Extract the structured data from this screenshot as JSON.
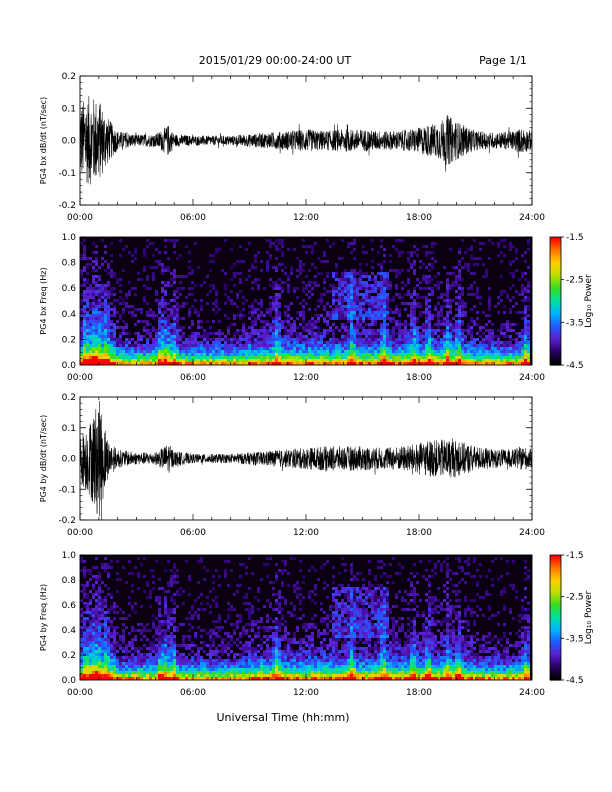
{
  "header": {
    "date_range": "2015/01/29  00:00-24:00 UT",
    "page": "Page 1/1"
  },
  "footer": {
    "xlabel": "Universal Time (hh:mm)"
  },
  "colors": {
    "trace": "#000000",
    "spectrogram_background": "#0a0012",
    "colormap": [
      "#000000",
      "#2a0066",
      "#5a1fd0",
      "#1f5bff",
      "#00b4ff",
      "#00e0a0",
      "#33dd22",
      "#b8e000",
      "#ffd000",
      "#ff7a00",
      "#ff0000"
    ]
  },
  "chart_data": [
    {
      "type": "line",
      "id": "bx_dbdt",
      "ylabel": "PG4 bx dB/dt (nT/sec)",
      "xlim": [
        0,
        24
      ],
      "ylim": [
        -0.2,
        0.2
      ],
      "yticks": [
        "0.2",
        "0.1",
        "0.0",
        "-0.1",
        "-0.2"
      ],
      "ytick_values": [
        0.2,
        0.1,
        0.0,
        -0.1,
        -0.2
      ],
      "xticks": [
        "00:00",
        "06:00",
        "12:00",
        "18:00",
        "24:00"
      ],
      "envelope_hours": [
        0,
        0.5,
        1,
        1.5,
        2,
        3,
        4,
        4.4,
        4.7,
        5,
        6,
        7,
        8,
        9,
        10,
        11,
        12,
        13,
        14,
        15,
        16,
        17,
        18,
        18.5,
        19,
        19.5,
        20,
        21,
        22,
        23,
        23.5,
        24
      ],
      "envelope_amp": [
        0.12,
        0.14,
        0.13,
        0.07,
        0.03,
        0.018,
        0.02,
        0.035,
        0.05,
        0.02,
        0.015,
        0.015,
        0.015,
        0.02,
        0.025,
        0.03,
        0.035,
        0.03,
        0.035,
        0.035,
        0.03,
        0.03,
        0.04,
        0.05,
        0.055,
        0.08,
        0.06,
        0.03,
        0.025,
        0.03,
        0.04,
        0.03
      ]
    },
    {
      "type": "heatmap",
      "id": "bx_freq",
      "ylabel": "PG4 bx Freq (Hz)",
      "xlim": [
        0,
        24
      ],
      "ylim": [
        0.0,
        1.0
      ],
      "yticks": [
        "1.0",
        "0.8",
        "0.6",
        "0.4",
        "0.2",
        "0.0"
      ],
      "ytick_values": [
        1.0,
        0.8,
        0.6,
        0.4,
        0.2,
        0.0
      ],
      "xticks": [
        "00:00",
        "06:00",
        "12:00",
        "18:00",
        "24:00"
      ],
      "colorbar": {
        "label": "Log₁₀ Power",
        "range": [
          -4.5,
          -1.5
        ],
        "ticks": [
          "-1.5",
          "-2.5",
          "-3.5",
          "-4.5"
        ],
        "tick_values": [
          -1.5,
          -2.5,
          -3.5,
          -4.5
        ]
      }
    },
    {
      "type": "line",
      "id": "by_dbdt",
      "ylabel": "PG4 by dB/dt (nT/sec)",
      "xlim": [
        0,
        24
      ],
      "ylim": [
        -0.2,
        0.2
      ],
      "yticks": [
        "0.2",
        "0.1",
        "0.0",
        "-0.1",
        "-0.2"
      ],
      "ytick_values": [
        0.2,
        0.1,
        0.0,
        -0.1,
        -0.2
      ],
      "xticks": [
        "00:00",
        "06:00",
        "12:00",
        "18:00",
        "24:00"
      ],
      "envelope_hours": [
        0,
        0.5,
        1,
        1.5,
        2,
        3,
        4,
        4.4,
        4.7,
        5,
        6,
        7,
        8,
        9,
        10,
        11,
        12,
        13,
        14,
        15,
        16,
        17,
        18,
        18.5,
        19,
        19.5,
        20,
        21,
        22,
        23,
        23.5,
        24
      ],
      "envelope_amp": [
        0.08,
        0.12,
        0.2,
        0.06,
        0.03,
        0.02,
        0.02,
        0.035,
        0.05,
        0.025,
        0.015,
        0.015,
        0.015,
        0.02,
        0.025,
        0.03,
        0.035,
        0.04,
        0.04,
        0.04,
        0.035,
        0.04,
        0.05,
        0.06,
        0.06,
        0.065,
        0.06,
        0.04,
        0.03,
        0.03,
        0.04,
        0.03
      ]
    },
    {
      "type": "heatmap",
      "id": "by_freq",
      "ylabel": "PG4 by Freq (Hz)",
      "xlim": [
        0,
        24
      ],
      "ylim": [
        0.0,
        1.0
      ],
      "yticks": [
        "1.0",
        "0.8",
        "0.6",
        "0.4",
        "0.2",
        "0.0"
      ],
      "ytick_values": [
        1.0,
        0.8,
        0.6,
        0.4,
        0.2,
        0.0
      ],
      "xticks": [
        "00:00",
        "06:00",
        "12:00",
        "18:00",
        "24:00"
      ],
      "colorbar": {
        "label": "Log₁₀ Power",
        "range": [
          -4.5,
          -1.5
        ],
        "ticks": [
          "-1.5",
          "-2.5",
          "-3.5",
          "-4.5"
        ],
        "tick_values": [
          -1.5,
          -2.5,
          -3.5,
          -4.5
        ]
      }
    }
  ]
}
